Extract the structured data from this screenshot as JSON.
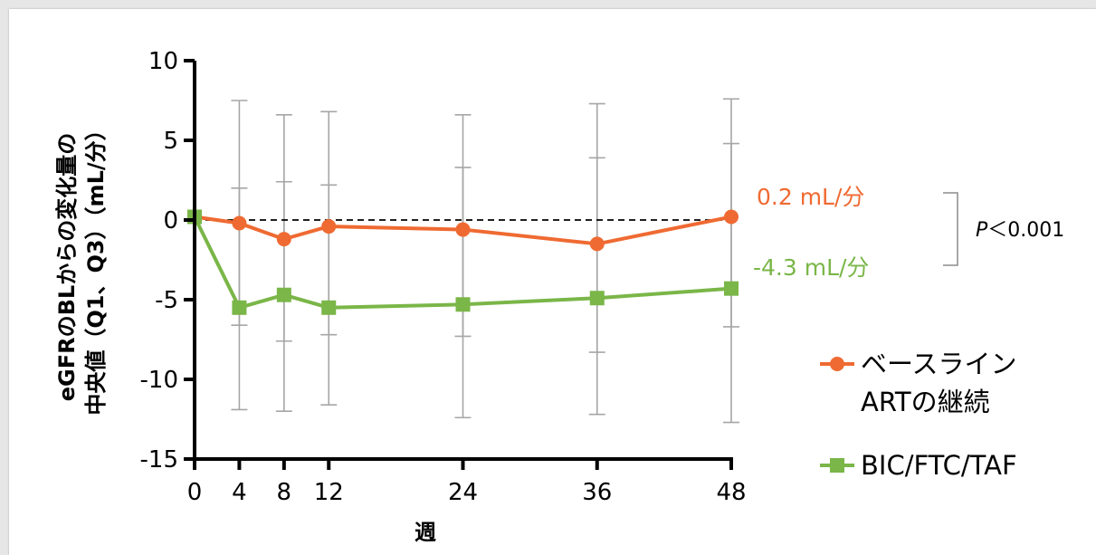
{
  "chart_data": {
    "type": "line",
    "title": "",
    "xlabel": "週",
    "ylabel_line1": "eGFRのBLからの変化量の",
    "ylabel_line2": "中央値（Q1、Q3）（mL/分）",
    "x": [
      0,
      4,
      8,
      12,
      24,
      36,
      48
    ],
    "xticks": [
      "0",
      "4",
      "8",
      "12",
      "24",
      "36",
      "48"
    ],
    "yticks": [
      "10",
      "5",
      "0",
      "-5",
      "-10",
      "-15"
    ],
    "ytick_values": [
      10,
      5,
      0,
      -5,
      -10,
      -15
    ],
    "xlim": [
      0,
      48
    ],
    "ylim": [
      -15,
      10
    ],
    "reference_line": 0,
    "series": [
      {
        "name": "ベースラインARTの継続",
        "name_line1": "ベースライン",
        "name_line2": "ARTの継続",
        "color": "#ef6a32",
        "marker": "circle",
        "values": [
          0.2,
          -0.2,
          -1.2,
          -0.4,
          -0.6,
          -1.5,
          0.2
        ],
        "q1": [
          0.2,
          -6.6,
          -7.6,
          -7.2,
          -7.3,
          -8.3,
          -6.7
        ],
        "q3": [
          0.2,
          7.5,
          6.6,
          6.8,
          6.6,
          7.3,
          7.6
        ],
        "end_label": "0.2 mL/分"
      },
      {
        "name": "BIC/FTC/TAF",
        "name_line1": "BIC/FTC/TAF",
        "name_line2": "",
        "color": "#7ab648",
        "marker": "square",
        "values": [
          0.2,
          -5.5,
          -4.7,
          -5.5,
          -5.3,
          -4.9,
          -4.3
        ],
        "q1": [
          0.2,
          -11.9,
          -12.0,
          -11.6,
          -12.4,
          -12.2,
          -12.7
        ],
        "q3": [
          0.2,
          2.0,
          2.4,
          2.2,
          3.3,
          3.9,
          4.8
        ],
        "end_label": "-4.3 mL/分"
      }
    ],
    "annotation_p_italic": "P",
    "annotation_p_rest": "＜0.001",
    "errorbar_color": "#a6a6a6",
    "grid": false,
    "legend_position": "right"
  }
}
